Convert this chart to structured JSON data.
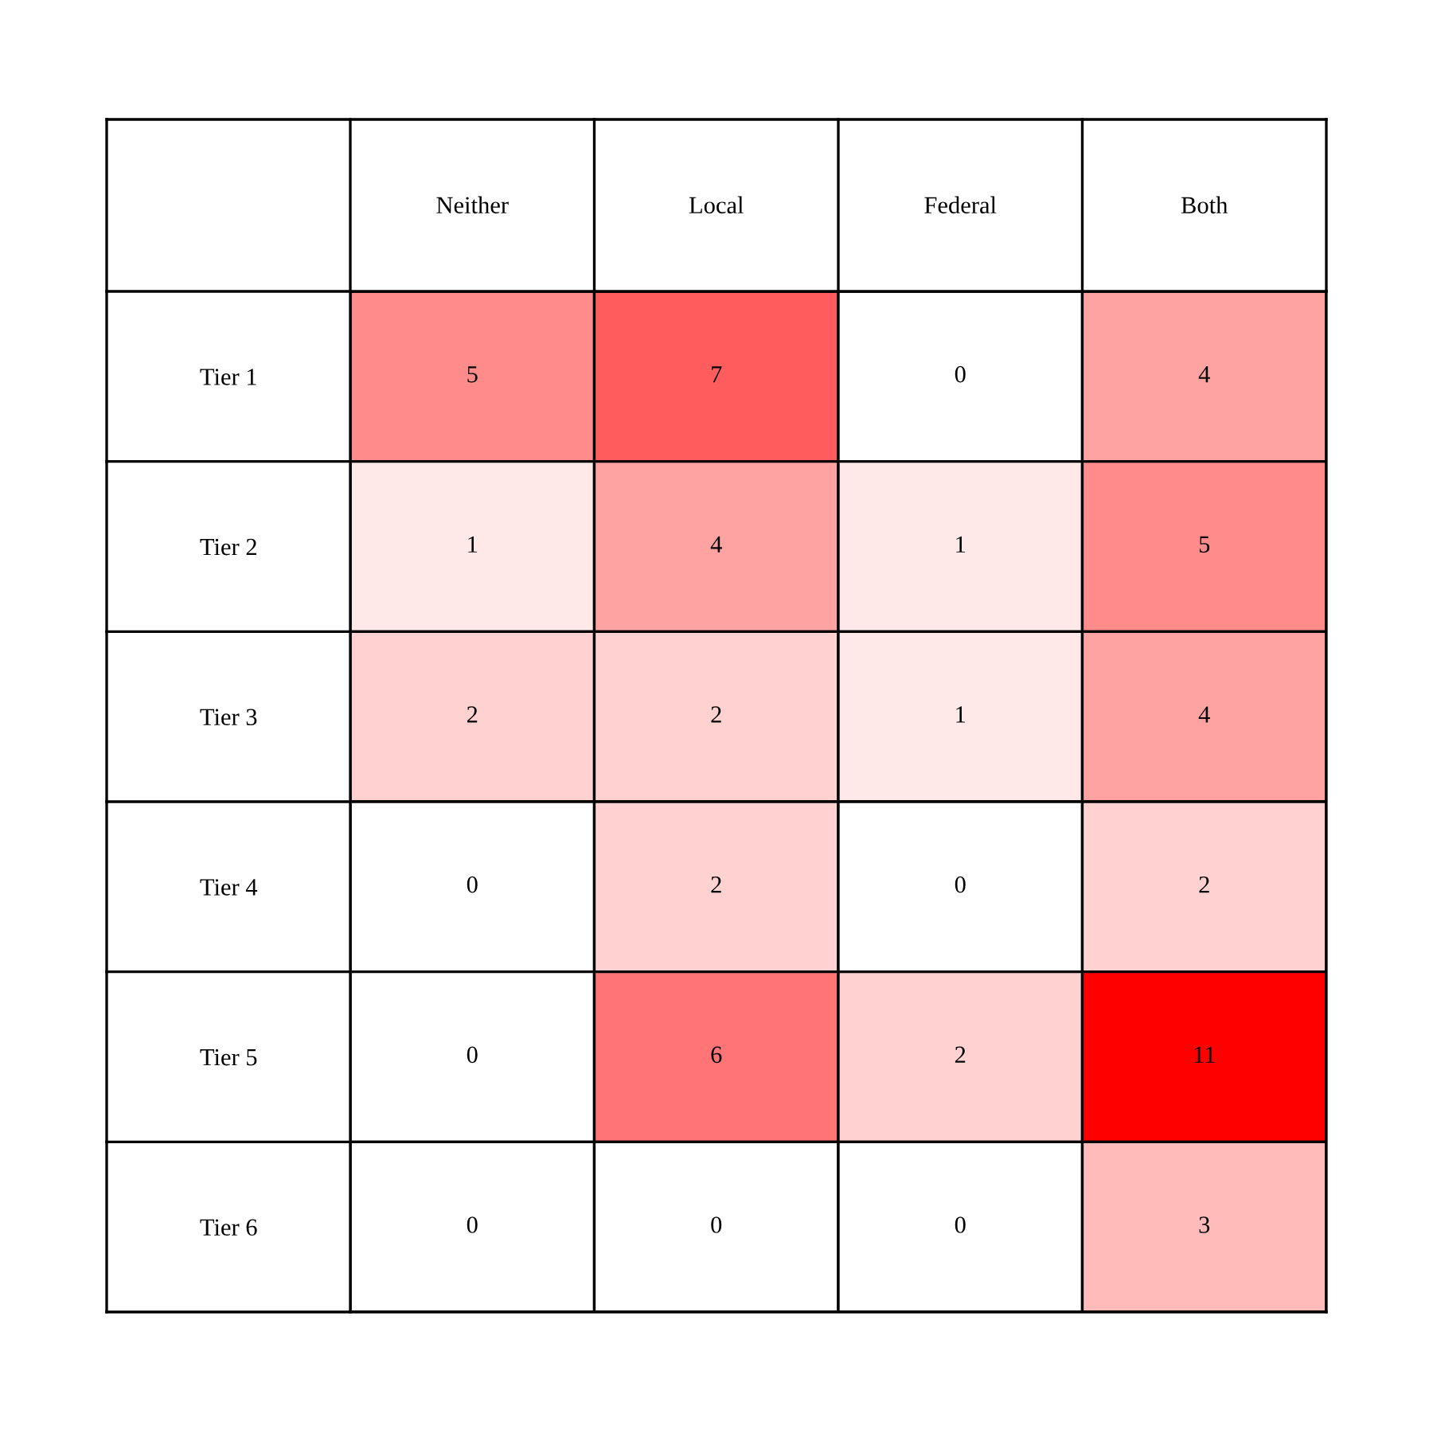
{
  "chart_data": {
    "type": "heatmap",
    "categories": [
      "Neither",
      "Local",
      "Federal",
      "Both"
    ],
    "y_categories": [
      "Tier 1",
      "Tier 2",
      "Tier 3",
      "Tier 4",
      "Tier 5",
      "Tier 6"
    ],
    "cells": [
      [
        5,
        7,
        0,
        4
      ],
      [
        1,
        4,
        1,
        5
      ],
      [
        2,
        2,
        1,
        4
      ],
      [
        0,
        2,
        0,
        2
      ],
      [
        0,
        6,
        2,
        11
      ],
      [
        0,
        0,
        0,
        3
      ]
    ],
    "data_labels": true
  }
}
